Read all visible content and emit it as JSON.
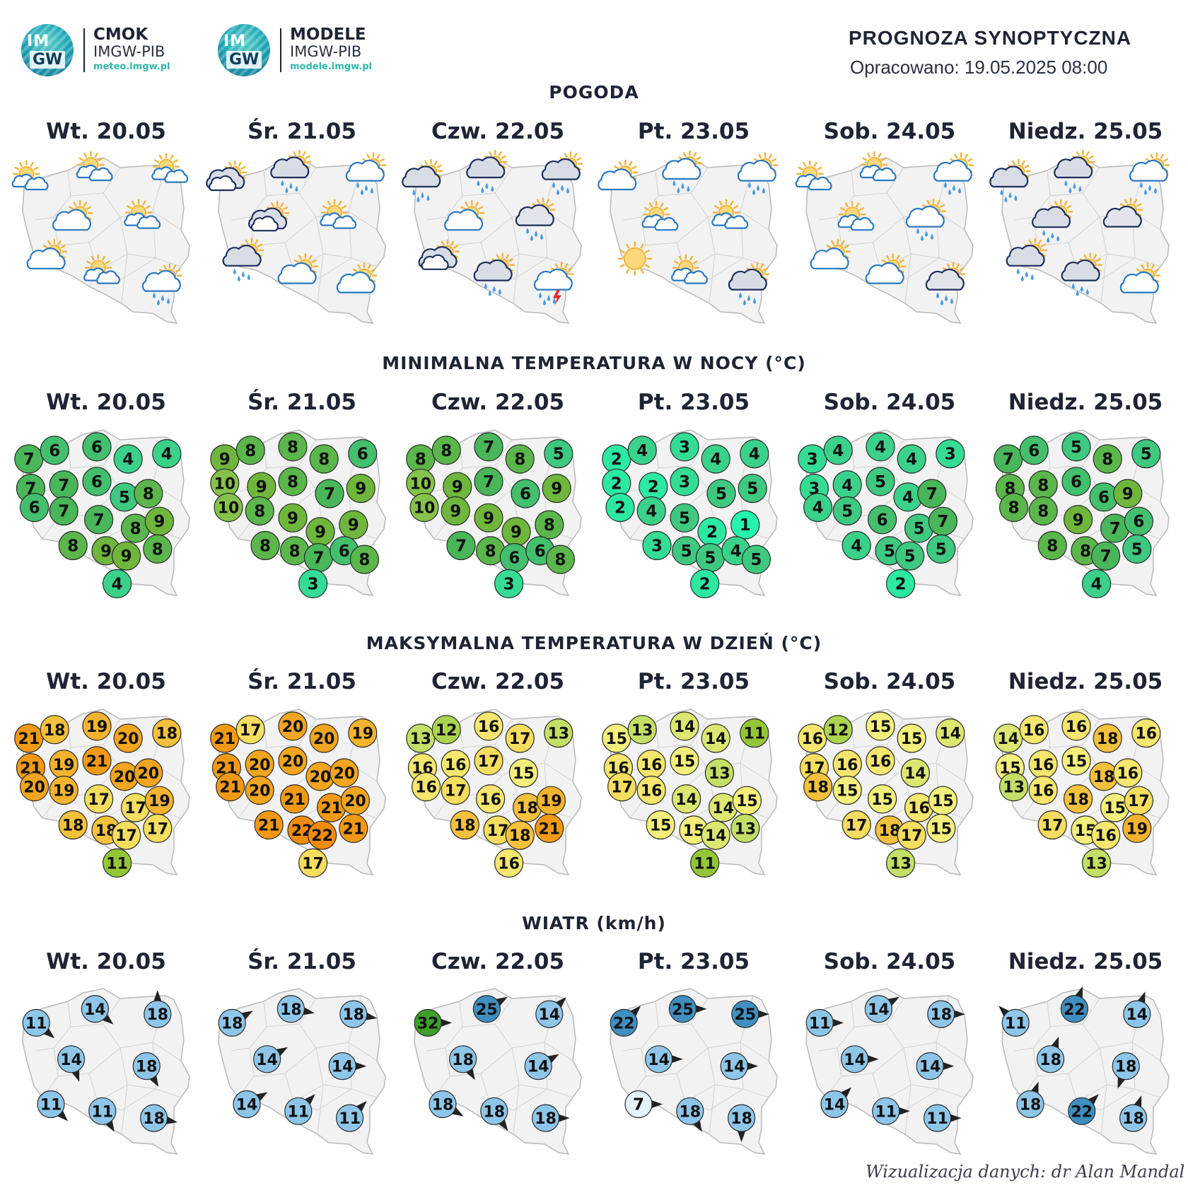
{
  "header": {
    "logo1": {
      "line1": "CMOK",
      "line2": "IMGW-PIB",
      "url": "meteo.imgw.pl"
    },
    "logo2": {
      "line1": "MODELE",
      "line2": "IMGW-PIB",
      "url": "modele.imgw.pl"
    },
    "logo_mark": {
      "top": "IM",
      "bottom": "GW"
    },
    "title": "PROGNOZA SYNOPTYCZNA",
    "prepared": "Opracowano: 19.05.2025 08:00"
  },
  "days": [
    "Wt. 20.05",
    "Śr. 21.05",
    "Czw. 22.05",
    "Pt. 23.05",
    "Sob. 24.05",
    "Niedz. 25.05"
  ],
  "sections": {
    "weather": "POGODA",
    "tmin": "MINIMALNA TEMPERATURA W NOCY (°C)",
    "tmax": "MAKSYMALNA TEMPERATURA W DZIEŃ (°C)",
    "wind": "WIATR (km/h)"
  },
  "colors": {
    "map_fill": "#f2f2f2",
    "map_border": "#b8b8b8",
    "region_line": "#d0d0d0"
  },
  "weather_icons": [
    [
      "sun-cloud-small-icon",
      "sun-cloud-small-icon",
      "sun-cloud-small-icon",
      "cloud-sun-icon",
      "sun-cloud-small-icon",
      "cloud-sun-icon",
      "sun-cloud-small-icon",
      "cloud-rain-icon"
    ],
    [
      "cloud-dark-icon",
      "cloud-dark-rain-icon",
      "cloud-sun-rain-icon",
      "cloud-dark-icon",
      "sun-cloud-small-icon",
      "cloud-dark-rain-icon",
      "cloud-sun-icon",
      "cloud-sun-icon"
    ],
    [
      "cloud-dark-rain-icon",
      "cloud-dark-rain-icon",
      "cloud-dark-rain-icon",
      "cloud-sun-icon",
      "cloud-grey-rain-icon",
      "cloud-dark-icon",
      "cloud-dark-rain-icon",
      "cloud-storm-icon"
    ],
    [
      "cloud-sun-icon",
      "cloud-sun-rain-icon",
      "cloud-sun-rain-icon",
      "sun-cloud-small-icon",
      "sun-cloud-small-icon",
      "sun-icon",
      "sun-cloud-small-icon",
      "cloud-dark-rain-icon"
    ],
    [
      "sun-cloud-small-icon",
      "sun-cloud-small-icon",
      "cloud-sun-rain-icon",
      "sun-cloud-small-icon",
      "cloud-sun-rain-icon",
      "cloud-sun-icon",
      "cloud-sun-icon",
      "cloud-grey-rain-icon"
    ],
    [
      "cloud-dark-rain-icon",
      "cloud-dark-rain-icon",
      "cloud-sun-rain-icon",
      "cloud-dark-rain-icon",
      "cloud-grey-icon",
      "cloud-dark-rain-icon",
      "cloud-dark-rain-icon",
      "cloud-sun-icon"
    ]
  ],
  "tmin": [
    [
      7,
      6,
      6,
      4,
      4,
      7,
      7,
      6,
      5,
      8,
      6,
      7,
      7,
      8,
      9,
      8,
      9,
      9,
      8,
      4
    ],
    [
      9,
      8,
      8,
      8,
      6,
      10,
      9,
      8,
      7,
      9,
      10,
      8,
      9,
      9,
      9,
      8,
      8,
      7,
      6,
      8,
      3
    ],
    [
      8,
      8,
      7,
      8,
      5,
      10,
      9,
      7,
      6,
      9,
      10,
      9,
      9,
      9,
      8,
      7,
      8,
      6,
      6,
      8,
      3
    ],
    [
      2,
      4,
      3,
      4,
      4,
      2,
      2,
      3,
      5,
      5,
      2,
      4,
      5,
      2,
      1,
      3,
      5,
      5,
      4,
      5,
      2
    ],
    [
      3,
      4,
      4,
      4,
      3,
      3,
      4,
      5,
      4,
      7,
      4,
      5,
      6,
      5,
      7,
      4,
      5,
      5,
      5,
      2
    ],
    [
      7,
      6,
      5,
      8,
      5,
      8,
      8,
      6,
      6,
      9,
      8,
      8,
      9,
      7,
      6,
      8,
      8,
      7,
      5,
      4
    ]
  ],
  "tmax": [
    [
      21,
      18,
      19,
      20,
      18,
      21,
      19,
      21,
      20,
      20,
      20,
      19,
      17,
      17,
      19,
      18,
      18,
      17,
      17,
      11
    ],
    [
      21,
      17,
      20,
      20,
      19,
      21,
      20,
      20,
      20,
      20,
      21,
      20,
      21,
      21,
      20,
      21,
      22,
      22,
      21,
      17
    ],
    [
      13,
      12,
      16,
      17,
      13,
      16,
      16,
      17,
      15,
      16,
      17,
      16,
      18,
      19,
      18,
      17,
      18,
      21,
      16
    ],
    [
      15,
      13,
      14,
      14,
      11,
      16,
      16,
      15,
      13,
      17,
      16,
      14,
      14,
      15,
      15,
      15,
      14,
      13,
      11
    ],
    [
      16,
      12,
      15,
      15,
      14,
      17,
      16,
      16,
      14,
      18,
      15,
      15,
      16,
      15,
      17,
      18,
      17,
      15,
      13
    ],
    [
      14,
      16,
      16,
      18,
      16,
      15,
      16,
      15,
      18,
      16,
      13,
      16,
      18,
      15,
      17,
      17,
      15,
      16,
      19,
      13
    ]
  ],
  "wind": [
    [
      11,
      14,
      18,
      14,
      18,
      11,
      11,
      18
    ],
    [
      18,
      18,
      18,
      14,
      14,
      14,
      11,
      11
    ],
    [
      32,
      25,
      14,
      18,
      14,
      18,
      18,
      18
    ],
    [
      22,
      25,
      25,
      14,
      14,
      7,
      18,
      18
    ],
    [
      11,
      14,
      18,
      14,
      14,
      14,
      11,
      11
    ],
    [
      11,
      22,
      14,
      18,
      18,
      18,
      22,
      18
    ]
  ],
  "credit": "Wizualizacja danych: dr Alan Mandal"
}
